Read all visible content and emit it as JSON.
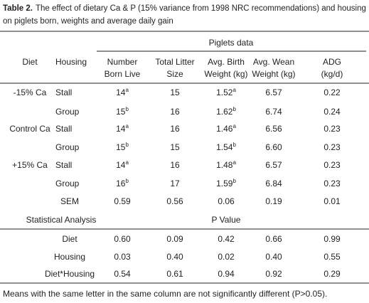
{
  "table_label": "Table 2.",
  "title_lines": [
    "The effect of dietary Ca & P (15% variance from 1998 NRC recommendations) and housing",
    "on piglets born, weights and average daily gain"
  ],
  "group_header": "Piglets data",
  "columns": [
    [
      "Diet"
    ],
    [
      "Housing"
    ],
    [
      "Number",
      "Born Live"
    ],
    [
      "Total Litter",
      "Size"
    ],
    [
      "Avg. Birth",
      "Weight (kg)"
    ],
    [
      "Avg. Wean",
      "Weight (kg)"
    ],
    [
      "ADG",
      "(kg/d)"
    ]
  ],
  "rows": [
    {
      "diet": "-15% Ca",
      "housing": "Stall",
      "cells": [
        {
          "v": "14",
          "sup": "a"
        },
        {
          "v": "15"
        },
        {
          "v": "1.52",
          "sup": "a"
        },
        {
          "v": "6.57"
        },
        {
          "v": "0.22"
        }
      ]
    },
    {
      "diet": null,
      "housing": "Group",
      "cells": [
        {
          "v": "15",
          "sup": "b"
        },
        {
          "v": "16"
        },
        {
          "v": "1.62",
          "sup": "b"
        },
        {
          "v": "6.74"
        },
        {
          "v": "0.24"
        }
      ]
    },
    {
      "diet": "Control Ca",
      "housing": "Stall",
      "cells": [
        {
          "v": "14",
          "sup": "a"
        },
        {
          "v": "16"
        },
        {
          "v": "1.46",
          "sup": "a"
        },
        {
          "v": "6.56"
        },
        {
          "v": "0.23"
        }
      ]
    },
    {
      "diet": null,
      "housing": "Group",
      "cells": [
        {
          "v": "15",
          "sup": "b"
        },
        {
          "v": "15"
        },
        {
          "v": "1.54",
          "sup": "b"
        },
        {
          "v": "6.60"
        },
        {
          "v": "0.23"
        }
      ]
    },
    {
      "diet": "+15% Ca",
      "housing": "Stall",
      "cells": [
        {
          "v": "14",
          "sup": "a"
        },
        {
          "v": "16"
        },
        {
          "v": "1.48",
          "sup": "a"
        },
        {
          "v": "6.57"
        },
        {
          "v": "0.23"
        }
      ]
    },
    {
      "diet": null,
      "housing": "Group",
      "cells": [
        {
          "v": "16",
          "sup": "b"
        },
        {
          "v": "17"
        },
        {
          "v": "1.59",
          "sup": "b"
        },
        {
          "v": "6.84"
        },
        {
          "v": "0.23"
        }
      ]
    }
  ],
  "sem": {
    "label": "SEM",
    "values": [
      "0.59",
      "0.56",
      "0.06",
      "0.19",
      "0.01"
    ]
  },
  "stats": {
    "label": "Statistical Analysis",
    "value_header": "P Value",
    "rows": [
      {
        "label": "Diet",
        "values": [
          "0.60",
          "0.09",
          "0.42",
          "0.66",
          "0.99"
        ]
      },
      {
        "label": "Housing",
        "values": [
          "0.03",
          "0.40",
          "0.02",
          "0.40",
          "0.55"
        ]
      },
      {
        "label": "Diet*Housing",
        "values": [
          "0.54",
          "0.61",
          "0.94",
          "0.92",
          "0.29"
        ]
      }
    ]
  },
  "footnote": "Means with the same letter in the same column are not significantly different  (P>0.05)."
}
